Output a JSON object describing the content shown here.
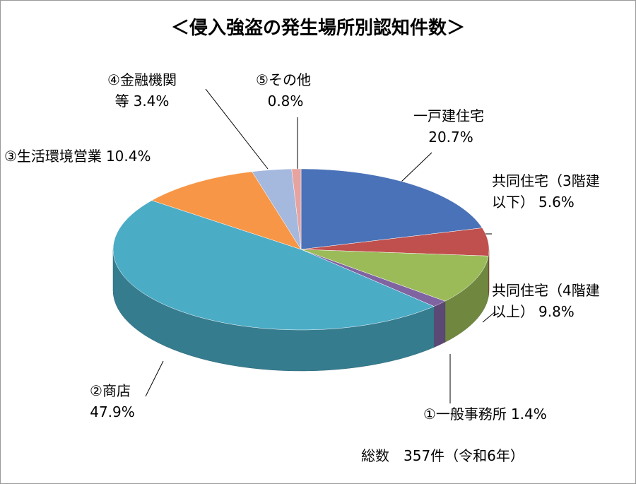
{
  "chart_data": {
    "type": "pie",
    "title": "＜侵入強盗の発生場所別認知件数＞",
    "categories": [
      "一戸建住宅",
      "共同住宅（3階建以下）",
      "共同住宅（4階建以上）",
      "①一般事務所",
      "②商店",
      "③生活環境営業",
      "④金融機関等",
      "⑤その他"
    ],
    "values": [
      20.7,
      5.6,
      9.8,
      1.4,
      47.9,
      10.4,
      3.4,
      0.8
    ],
    "value_labels": [
      "20.7%",
      "5.6%",
      "9.8%",
      "1.4%",
      "47.9%",
      "10.4%",
      "3.4%",
      "0.8%"
    ],
    "colors": [
      "#4a72b8",
      "#c0504d",
      "#9bbb59",
      "#8064a2",
      "#4bacc6",
      "#f79646",
      "#a5b8dd",
      "#e6a3a0"
    ],
    "note": "総数　357件（令和6年）"
  }
}
